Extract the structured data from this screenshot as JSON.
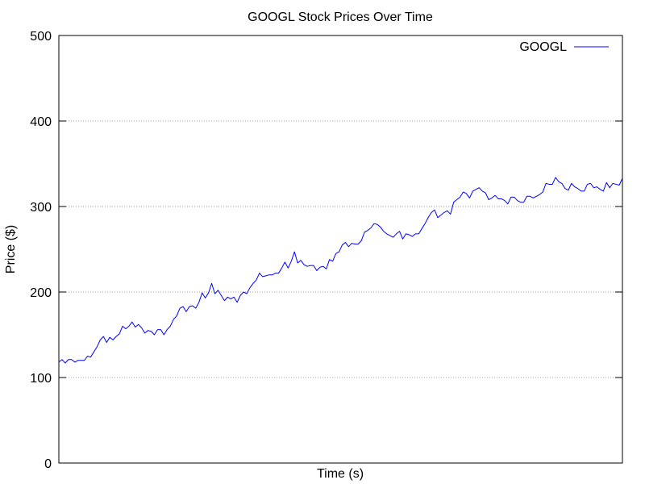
{
  "chart_data": {
    "type": "line",
    "title": "GOOGL Stock Prices Over Time",
    "xlabel": "Time (s)",
    "ylabel": "Price ($)",
    "ylim": [
      0,
      500
    ],
    "yticks": [
      0,
      100,
      200,
      300,
      400,
      500
    ],
    "grid": true,
    "legend_position": "top-right",
    "series": [
      {
        "name": "GOOGL",
        "color": "#0000ff",
        "values": [
          118,
          121,
          117,
          121,
          121,
          118,
          120,
          120,
          120,
          125,
          124,
          130,
          136,
          144,
          148,
          141,
          147,
          144,
          148,
          151,
          160,
          157,
          160,
          165,
          159,
          162,
          158,
          152,
          155,
          154,
          150,
          156,
          156,
          150,
          156,
          160,
          168,
          172,
          181,
          183,
          177,
          183,
          184,
          181,
          188,
          199,
          193,
          199,
          210,
          198,
          202,
          196,
          190,
          194,
          192,
          194,
          188,
          196,
          200,
          198,
          205,
          210,
          214,
          222,
          218,
          219,
          220,
          220,
          222,
          222,
          228,
          235,
          228,
          236,
          247,
          234,
          237,
          232,
          230,
          231,
          231,
          225,
          229,
          230,
          227,
          238,
          236,
          245,
          247,
          255,
          258,
          253,
          257,
          256,
          256,
          260,
          270,
          272,
          275,
          280,
          279,
          276,
          271,
          268,
          266,
          264,
          268,
          271,
          262,
          268,
          267,
          265,
          268,
          268,
          274,
          280,
          287,
          293,
          296,
          287,
          290,
          293,
          295,
          291,
          305,
          308,
          311,
          317,
          315,
          310,
          318,
          320,
          322,
          318,
          316,
          308,
          310,
          313,
          309,
          309,
          307,
          303,
          311,
          311,
          307,
          305,
          305,
          312,
          312,
          310,
          312,
          314,
          317,
          327,
          326,
          326,
          334,
          329,
          327,
          321,
          319,
          327,
          323,
          321,
          318,
          318,
          326,
          327,
          322,
          323,
          320,
          318,
          328,
          322,
          327,
          326,
          325,
          333
        ]
      }
    ]
  }
}
